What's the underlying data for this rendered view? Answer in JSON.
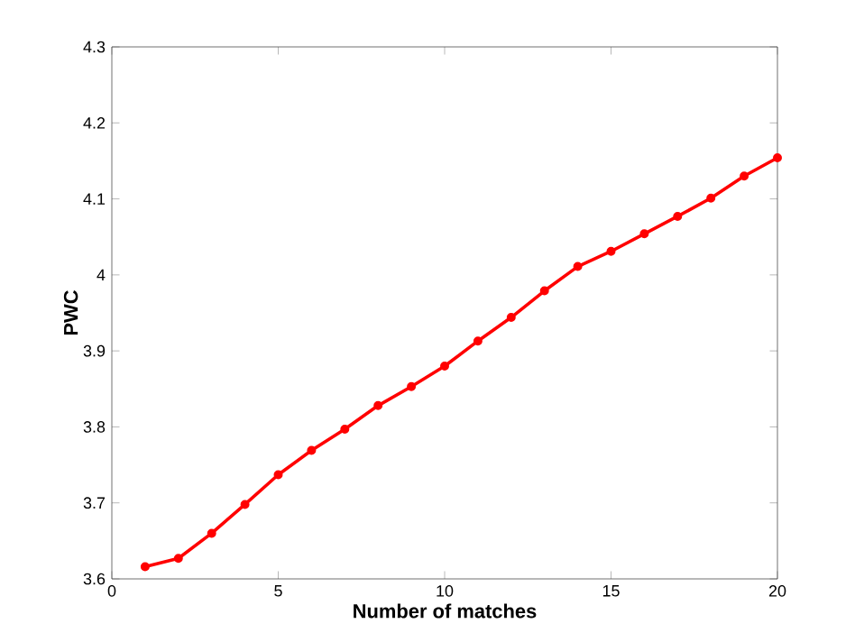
{
  "chart_data": {
    "type": "line",
    "xlabel": "Number of matches",
    "ylabel": "PWC",
    "x": [
      1,
      2,
      3,
      4,
      5,
      6,
      7,
      8,
      9,
      10,
      11,
      12,
      13,
      14,
      15,
      16,
      17,
      18,
      19,
      20
    ],
    "series": [
      {
        "color": "#ff0000",
        "values": [
          3.616,
          3.627,
          3.66,
          3.698,
          3.737,
          3.769,
          3.797,
          3.828,
          3.853,
          3.88,
          3.913,
          3.944,
          3.979,
          4.011,
          4.031,
          4.054,
          4.077,
          4.101,
          4.13,
          4.154
        ]
      }
    ],
    "xlim": [
      0,
      20
    ],
    "ylim": [
      3.6,
      4.3
    ],
    "xticks": [
      0,
      5,
      10,
      15,
      20
    ],
    "yticks": [
      3.6,
      3.7,
      3.8,
      3.9,
      4,
      4.1,
      4.2,
      4.3
    ],
    "marker": "circle",
    "line_style": "solid"
  }
}
